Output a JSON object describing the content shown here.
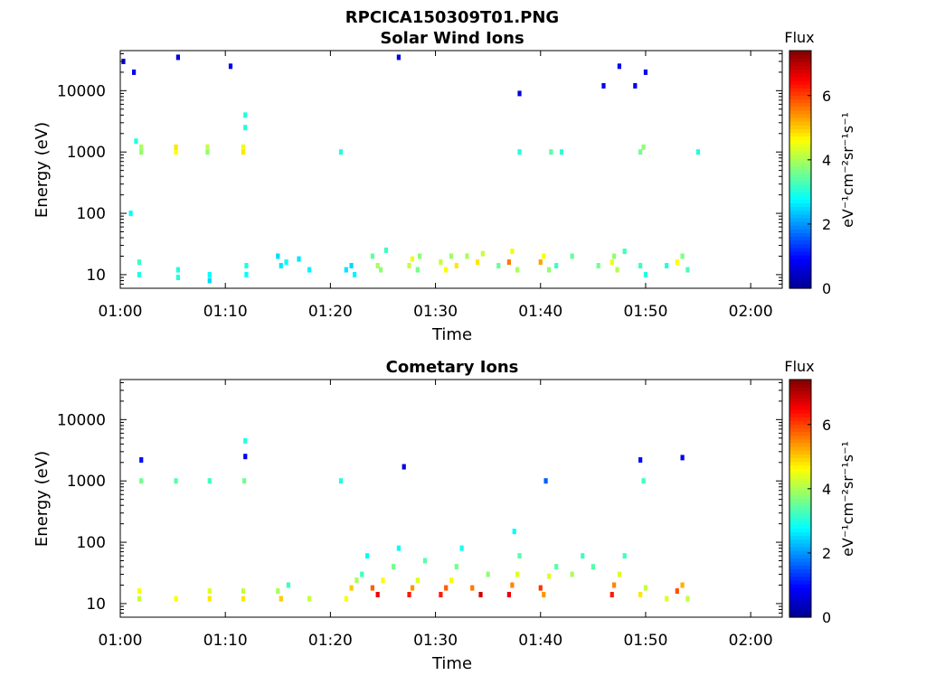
{
  "figure": {
    "title": "RPCICA150309T01.PNG"
  },
  "chart_data": [
    {
      "type": "heatmap",
      "title": "Solar Wind Ions",
      "xlabel": "Time",
      "ylabel": "Energy (eV)",
      "y_scale": "log",
      "xlim": [
        "01:00",
        "02:03"
      ],
      "ylim": [
        6,
        45000
      ],
      "x_ticks": [
        "01:00",
        "01:10",
        "01:20",
        "01:30",
        "01:40",
        "01:50",
        "02:00"
      ],
      "y_ticks": [
        "10",
        "100",
        "1000",
        "10000"
      ],
      "colorbar": {
        "title": "Flux",
        "unit": "eV⁻¹cm⁻²sr⁻¹s⁻¹",
        "range": [
          0,
          7.4
        ],
        "ticks": [
          "0",
          "2",
          "4",
          "6"
        ]
      },
      "colormap": [
        "#00008f",
        "#0000ff",
        "#0080ff",
        "#00ffff",
        "#80ff80",
        "#ffff00",
        "#ff8000",
        "#ff0000",
        "#800000"
      ],
      "cells": [
        [
          1.8,
          10,
          3.0
        ],
        [
          1.8,
          16,
          3.2
        ],
        [
          2.0,
          1000,
          3.8
        ],
        [
          2.0,
          1200,
          4.0
        ],
        [
          1.0,
          100,
          2.8
        ],
        [
          1.5,
          1500,
          3.0
        ],
        [
          5.3,
          1000,
          4.6
        ],
        [
          5.3,
          1200,
          4.8
        ],
        [
          5.5,
          12,
          3.0
        ],
        [
          5.5,
          9,
          3.0
        ],
        [
          8.3,
          1000,
          3.8
        ],
        [
          8.3,
          1200,
          4.2
        ],
        [
          8.5,
          8,
          2.5
        ],
        [
          8.5,
          10,
          2.8
        ],
        [
          11.7,
          1000,
          4.8
        ],
        [
          11.7,
          1200,
          4.5
        ],
        [
          11.9,
          2500,
          3.0
        ],
        [
          11.9,
          4000,
          3.0
        ],
        [
          12.0,
          14,
          3.0
        ],
        [
          12.0,
          10,
          2.8
        ],
        [
          15.0,
          20,
          2.5
        ],
        [
          15.3,
          14,
          2.6
        ],
        [
          15.8,
          16,
          2.8
        ],
        [
          17.0,
          18,
          2.6
        ],
        [
          18.0,
          12,
          2.7
        ],
        [
          21.0,
          1000,
          3.0
        ],
        [
          21.5,
          12,
          2.6
        ],
        [
          22.0,
          14,
          2.5
        ],
        [
          22.3,
          10,
          2.7
        ],
        [
          24.0,
          20,
          3.5
        ],
        [
          24.5,
          14,
          4.0
        ],
        [
          24.8,
          12,
          3.8
        ],
        [
          25.3,
          25,
          3.2
        ],
        [
          27.5,
          14,
          4.2
        ],
        [
          27.8,
          18,
          4.5
        ],
        [
          28.3,
          12,
          3.6
        ],
        [
          28.5,
          20,
          3.8
        ],
        [
          30.5,
          16,
          4.2
        ],
        [
          31.0,
          12,
          4.6
        ],
        [
          31.5,
          20,
          3.9
        ],
        [
          32.0,
          14,
          4.8
        ],
        [
          33.0,
          20,
          4.0
        ],
        [
          34.0,
          16,
          4.8
        ],
        [
          34.5,
          22,
          4.2
        ],
        [
          37.0,
          16,
          5.6
        ],
        [
          37.3,
          24,
          4.5
        ],
        [
          37.8,
          12,
          4.0
        ],
        [
          36.0,
          14,
          3.5
        ],
        [
          40.0,
          16,
          5.3
        ],
        [
          40.3,
          20,
          4.6
        ],
        [
          40.8,
          12,
          3.8
        ],
        [
          41.5,
          14,
          3.2
        ],
        [
          43.0,
          20,
          3.5
        ],
        [
          45.5,
          14,
          3.6
        ],
        [
          46.8,
          16,
          4.5
        ],
        [
          47.0,
          20,
          3.8
        ],
        [
          47.3,
          12,
          4.1
        ],
        [
          48.0,
          24,
          3.2
        ],
        [
          49.5,
          14,
          3.2
        ],
        [
          50.0,
          10,
          3.0
        ],
        [
          49.5,
          1000,
          3.6
        ],
        [
          49.8,
          1200,
          3.8
        ],
        [
          52.0,
          14,
          3.0
        ],
        [
          53.0,
          16,
          4.6
        ],
        [
          53.5,
          20,
          3.7
        ],
        [
          54.0,
          12,
          3.3
        ],
        [
          55.0,
          1000,
          3.0
        ],
        [
          38.0,
          1000,
          3.0
        ],
        [
          41.0,
          1000,
          3.4
        ],
        [
          42.0,
          1000,
          3.1
        ],
        [
          0.3,
          30000,
          0.6
        ],
        [
          1.3,
          20000,
          0.8
        ],
        [
          5.5,
          35000,
          0.6
        ],
        [
          10.5,
          25000,
          0.8
        ],
        [
          26.5,
          35000,
          0.7
        ],
        [
          46.0,
          12000,
          0.8
        ],
        [
          47.5,
          25000,
          0.8
        ],
        [
          49.0,
          12000,
          0.8
        ],
        [
          50.0,
          20000,
          0.8
        ],
        [
          38.0,
          9000,
          0.6
        ]
      ]
    },
    {
      "type": "heatmap",
      "title": "Cometary Ions",
      "xlabel": "Time",
      "ylabel": "Energy (eV)",
      "y_scale": "log",
      "xlim": [
        "01:00",
        "02:03"
      ],
      "ylim": [
        6,
        45000
      ],
      "x_ticks": [
        "01:00",
        "01:10",
        "01:20",
        "01:30",
        "01:40",
        "01:50",
        "02:00"
      ],
      "y_ticks": [
        "10",
        "100",
        "1000",
        "10000"
      ],
      "colorbar": {
        "title": "Flux",
        "unit": "eV⁻¹cm⁻²sr⁻¹s⁻¹",
        "range": [
          0,
          7.4
        ],
        "ticks": [
          "0",
          "2",
          "4",
          "6"
        ]
      },
      "colormap": [
        "#00008f",
        "#0000ff",
        "#0080ff",
        "#00ffff",
        "#80ff80",
        "#ffff00",
        "#ff8000",
        "#ff0000",
        "#800000"
      ],
      "cells": [
        [
          1.8,
          12,
          4.2
        ],
        [
          1.8,
          16,
          4.6
        ],
        [
          2.0,
          1000,
          3.6
        ],
        [
          2.0,
          2200,
          1.0
        ],
        [
          5.3,
          12,
          4.6
        ],
        [
          5.3,
          1000,
          3.4
        ],
        [
          8.5,
          12,
          4.8
        ],
        [
          8.5,
          16,
          4.4
        ],
        [
          8.5,
          1000,
          3.2
        ],
        [
          11.7,
          12,
          4.8
        ],
        [
          11.7,
          16,
          4.2
        ],
        [
          11.8,
          1000,
          3.6
        ],
        [
          11.9,
          2500,
          0.8
        ],
        [
          11.9,
          4500,
          3.0
        ],
        [
          15.0,
          16,
          4.0
        ],
        [
          15.3,
          12,
          5.0
        ],
        [
          16.0,
          20,
          3.2
        ],
        [
          18.0,
          12,
          4.2
        ],
        [
          21.0,
          1000,
          3.0
        ],
        [
          21.5,
          12,
          4.6
        ],
        [
          22.0,
          18,
          5.0
        ],
        [
          22.5,
          24,
          4.0
        ],
        [
          23.0,
          30,
          3.2
        ],
        [
          23.5,
          60,
          2.8
        ],
        [
          24.0,
          18,
          5.8
        ],
        [
          24.5,
          14,
          6.6
        ],
        [
          25.0,
          24,
          4.6
        ],
        [
          26.0,
          40,
          3.6
        ],
        [
          26.5,
          80,
          2.8
        ],
        [
          27.5,
          14,
          6.3
        ],
        [
          27.8,
          18,
          5.4
        ],
        [
          28.3,
          24,
          4.4
        ],
        [
          29.0,
          50,
          3.4
        ],
        [
          30.5,
          14,
          6.3
        ],
        [
          31.0,
          18,
          5.8
        ],
        [
          31.5,
          24,
          4.6
        ],
        [
          32.0,
          40,
          3.6
        ],
        [
          32.5,
          80,
          2.9
        ],
        [
          33.5,
          18,
          5.6
        ],
        [
          34.3,
          14,
          6.8
        ],
        [
          35.0,
          30,
          3.8
        ],
        [
          37.0,
          14,
          6.6
        ],
        [
          37.3,
          20,
          5.5
        ],
        [
          37.8,
          30,
          4.4
        ],
        [
          38.0,
          60,
          3.4
        ],
        [
          37.5,
          150,
          2.8
        ],
        [
          40.0,
          18,
          6.1
        ],
        [
          40.3,
          14,
          5.4
        ],
        [
          40.8,
          28,
          4.4
        ],
        [
          41.5,
          40,
          3.4
        ],
        [
          43.0,
          30,
          4.0
        ],
        [
          44.0,
          60,
          3.2
        ],
        [
          45.0,
          40,
          3.4
        ],
        [
          46.8,
          14,
          6.3
        ],
        [
          47.0,
          20,
          5.5
        ],
        [
          47.5,
          30,
          4.4
        ],
        [
          48.0,
          60,
          3.2
        ],
        [
          49.5,
          14,
          4.8
        ],
        [
          50.0,
          18,
          4.2
        ],
        [
          49.8,
          1000,
          3.2
        ],
        [
          49.5,
          2200,
          1.0
        ],
        [
          52.0,
          12,
          4.4
        ],
        [
          53.0,
          16,
          5.9
        ],
        [
          53.5,
          20,
          5.2
        ],
        [
          54.0,
          12,
          4.2
        ],
        [
          53.5,
          2400,
          0.8
        ],
        [
          27.0,
          1700,
          0.6
        ],
        [
          40.5,
          1000,
          1.6
        ]
      ]
    }
  ]
}
